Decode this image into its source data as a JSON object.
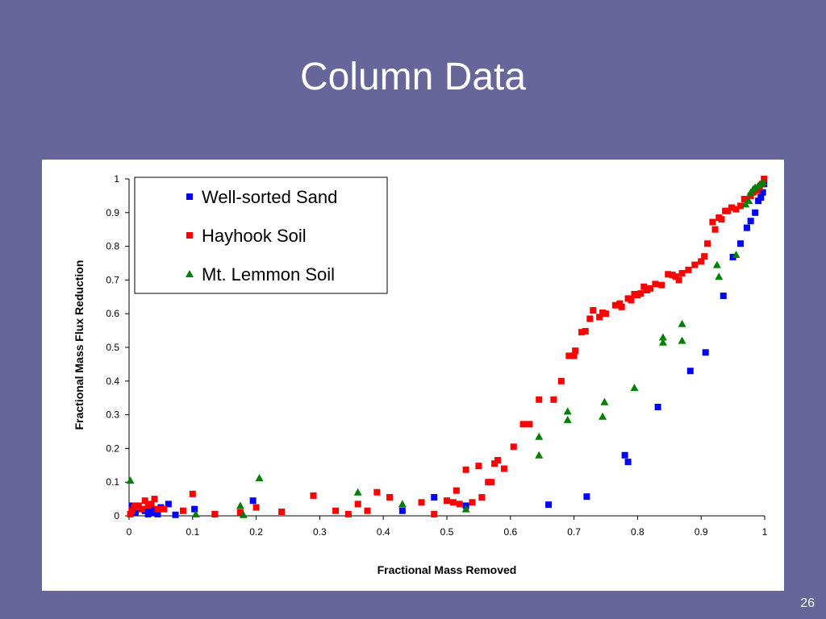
{
  "slide": {
    "title": "Column Data",
    "page_number": "26"
  },
  "colors": {
    "background": "#66669a",
    "panel": "#ffffff",
    "well_sorted_sand": "#0000ff",
    "hayhook_soil": "#ff0000",
    "mt_lemmon_soil": "#008000"
  },
  "chart_data": {
    "type": "scatter",
    "title": "",
    "xlabel": "Fractional Mass Removed",
    "ylabel": "Fractional Mass Flux Reduction",
    "xlim": [
      0,
      1
    ],
    "ylim": [
      0,
      1
    ],
    "x_ticks": [
      "0",
      "0.1",
      "0.2",
      "0.3",
      "0.4",
      "0.5",
      "0.6",
      "0.7",
      "0.8",
      "0.9",
      "1"
    ],
    "y_ticks": [
      "0",
      "0.1",
      "0.2",
      "0.3",
      "0.4",
      "0.5",
      "0.6",
      "0.7",
      "0.8",
      "0.9",
      "1"
    ],
    "grid": false,
    "legend_position": "top-left",
    "series": [
      {
        "name": "Well-sorted Sand",
        "marker": "square",
        "color": "#0000ff",
        "points": [
          [
            0.005,
            0.03
          ],
          [
            0.01,
            0.01
          ],
          [
            0.02,
            0.02
          ],
          [
            0.025,
            0.015
          ],
          [
            0.03,
            0.005
          ],
          [
            0.035,
            0.02
          ],
          [
            0.04,
            0.01
          ],
          [
            0.045,
            0.005
          ],
          [
            0.05,
            0.025
          ],
          [
            0.062,
            0.035
          ],
          [
            0.073,
            0.003
          ],
          [
            0.103,
            0.02
          ],
          [
            0.135,
            0.005
          ],
          [
            0.195,
            0.045
          ],
          [
            0.43,
            0.015
          ],
          [
            0.48,
            0.055
          ],
          [
            0.53,
            0.03
          ],
          [
            0.66,
            0.033
          ],
          [
            0.72,
            0.057
          ],
          [
            0.78,
            0.18
          ],
          [
            0.785,
            0.16
          ],
          [
            0.832,
            0.323
          ],
          [
            0.883,
            0.43
          ],
          [
            0.907,
            0.485
          ],
          [
            0.935,
            0.653
          ],
          [
            0.95,
            0.768
          ],
          [
            0.962,
            0.808
          ],
          [
            0.972,
            0.855
          ],
          [
            0.978,
            0.875
          ],
          [
            0.985,
            0.9
          ],
          [
            0.99,
            0.935
          ],
          [
            0.994,
            0.945
          ],
          [
            0.997,
            0.96
          ],
          [
            0.999,
            0.985
          ]
        ]
      },
      {
        "name": "Hayhook Soil",
        "marker": "square",
        "color": "#ff0000",
        "points": [
          [
            0.002,
            0.005
          ],
          [
            0.005,
            0.015
          ],
          [
            0.008,
            0.025
          ],
          [
            0.01,
            0.03
          ],
          [
            0.015,
            0.03
          ],
          [
            0.02,
            0.02
          ],
          [
            0.025,
            0.045
          ],
          [
            0.03,
            0.03
          ],
          [
            0.035,
            0.035
          ],
          [
            0.04,
            0.05
          ],
          [
            0.045,
            0.02
          ],
          [
            0.055,
            0.02
          ],
          [
            0.085,
            0.015
          ],
          [
            0.1,
            0.065
          ],
          [
            0.135,
            0.005
          ],
          [
            0.175,
            0.01
          ],
          [
            0.2,
            0.025
          ],
          [
            0.24,
            0.012
          ],
          [
            0.29,
            0.06
          ],
          [
            0.325,
            0.015
          ],
          [
            0.345,
            0.005
          ],
          [
            0.36,
            0.035
          ],
          [
            0.375,
            0.015
          ],
          [
            0.39,
            0.07
          ],
          [
            0.41,
            0.055
          ],
          [
            0.46,
            0.04
          ],
          [
            0.48,
            0.005
          ],
          [
            0.5,
            0.045
          ],
          [
            0.51,
            0.04
          ],
          [
            0.515,
            0.075
          ],
          [
            0.52,
            0.035
          ],
          [
            0.53,
            0.137
          ],
          [
            0.54,
            0.04
          ],
          [
            0.55,
            0.148
          ],
          [
            0.555,
            0.055
          ],
          [
            0.565,
            0.1
          ],
          [
            0.57,
            0.1
          ],
          [
            0.575,
            0.155
          ],
          [
            0.58,
            0.165
          ],
          [
            0.59,
            0.14
          ],
          [
            0.605,
            0.205
          ],
          [
            0.62,
            0.272
          ],
          [
            0.63,
            0.272
          ],
          [
            0.645,
            0.345
          ],
          [
            0.668,
            0.345
          ],
          [
            0.68,
            0.4
          ],
          [
            0.692,
            0.475
          ],
          [
            0.7,
            0.475
          ],
          [
            0.702,
            0.49
          ],
          [
            0.712,
            0.545
          ],
          [
            0.718,
            0.548
          ],
          [
            0.725,
            0.585
          ],
          [
            0.73,
            0.61
          ],
          [
            0.74,
            0.59
          ],
          [
            0.745,
            0.603
          ],
          [
            0.75,
            0.6
          ],
          [
            0.765,
            0.625
          ],
          [
            0.772,
            0.63
          ],
          [
            0.775,
            0.62
          ],
          [
            0.785,
            0.645
          ],
          [
            0.79,
            0.64
          ],
          [
            0.795,
            0.658
          ],
          [
            0.8,
            0.655
          ],
          [
            0.805,
            0.66
          ],
          [
            0.81,
            0.68
          ],
          [
            0.815,
            0.67
          ],
          [
            0.82,
            0.675
          ],
          [
            0.828,
            0.688
          ],
          [
            0.838,
            0.685
          ],
          [
            0.848,
            0.717
          ],
          [
            0.855,
            0.715
          ],
          [
            0.86,
            0.71
          ],
          [
            0.865,
            0.7
          ],
          [
            0.87,
            0.72
          ],
          [
            0.88,
            0.73
          ],
          [
            0.89,
            0.745
          ],
          [
            0.9,
            0.755
          ],
          [
            0.905,
            0.77
          ],
          [
            0.91,
            0.808
          ],
          [
            0.918,
            0.872
          ],
          [
            0.922,
            0.85
          ],
          [
            0.928,
            0.885
          ],
          [
            0.932,
            0.88
          ],
          [
            0.938,
            0.905
          ],
          [
            0.942,
            0.905
          ],
          [
            0.948,
            0.915
          ],
          [
            0.955,
            0.91
          ],
          [
            0.962,
            0.92
          ],
          [
            0.968,
            0.94
          ],
          [
            0.972,
            0.94
          ],
          [
            0.978,
            0.95
          ],
          [
            0.982,
            0.96
          ],
          [
            0.988,
            0.965
          ],
          [
            0.992,
            0.975
          ],
          [
            0.996,
            0.985
          ],
          [
            0.999,
            1.0
          ]
        ]
      },
      {
        "name": "Mt. Lemmon Soil",
        "marker": "triangle",
        "color": "#008000",
        "points": [
          [
            0.002,
            0.105
          ],
          [
            0.105,
            0.005
          ],
          [
            0.175,
            0.03
          ],
          [
            0.18,
            0.003
          ],
          [
            0.205,
            0.112
          ],
          [
            0.36,
            0.07
          ],
          [
            0.43,
            0.035
          ],
          [
            0.53,
            0.02
          ],
          [
            0.645,
            0.235
          ],
          [
            0.645,
            0.18
          ],
          [
            0.69,
            0.285
          ],
          [
            0.69,
            0.31
          ],
          [
            0.745,
            0.295
          ],
          [
            0.748,
            0.338
          ],
          [
            0.795,
            0.38
          ],
          [
            0.84,
            0.515
          ],
          [
            0.84,
            0.53
          ],
          [
            0.87,
            0.57
          ],
          [
            0.87,
            0.52
          ],
          [
            0.925,
            0.745
          ],
          [
            0.928,
            0.71
          ],
          [
            0.955,
            0.775
          ],
          [
            0.97,
            0.925
          ],
          [
            0.975,
            0.935
          ],
          [
            0.978,
            0.96
          ],
          [
            0.982,
            0.97
          ],
          [
            0.985,
            0.975
          ],
          [
            0.99,
            0.98
          ],
          [
            0.995,
            0.985
          ],
          [
            0.998,
            0.99
          ]
        ]
      }
    ]
  }
}
